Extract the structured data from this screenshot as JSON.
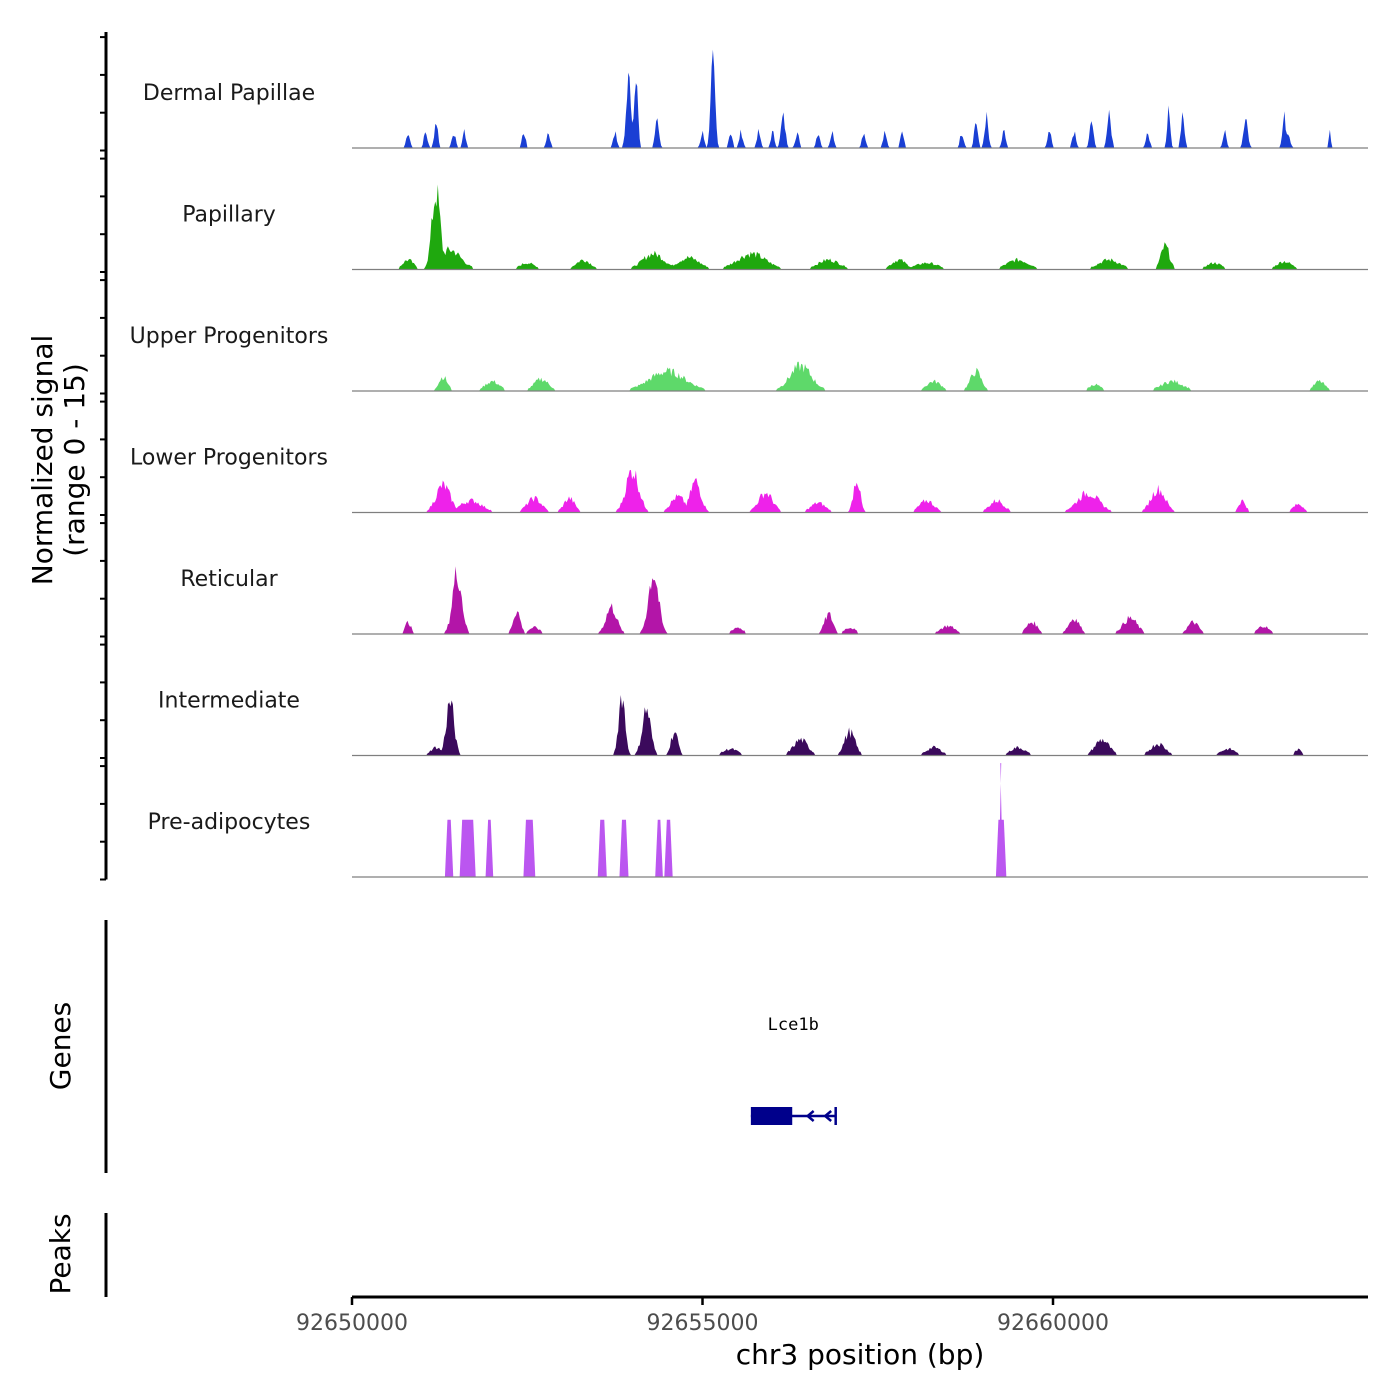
{
  "chart_data": {
    "type": "area",
    "title": "",
    "ylabel": [
      "Normalized signal",
      "(range 0 - 15)"
    ],
    "xlabel": "chr3 position (bp)",
    "xlim": [
      92650000,
      92664600
    ],
    "ylim": [
      0,
      15
    ],
    "x_ticks": [
      92650000,
      92655000,
      92660000
    ],
    "x_tick_labels": [
      "92650000",
      "92655000",
      "92660000"
    ],
    "panel_labels": {
      "genes": "Genes",
      "peaks": "Peaks"
    },
    "series": [
      {
        "name": "Dermal Papillae",
        "color": "#1a3fd4",
        "peaks": [
          [
            92650800,
            2,
            0.5
          ],
          [
            92651050,
            2,
            0.5
          ],
          [
            92651200,
            3.5,
            0.5
          ],
          [
            92651450,
            2,
            0.5
          ],
          [
            92651600,
            2,
            0.5
          ],
          [
            92652450,
            2,
            0.5
          ],
          [
            92652800,
            2,
            0.5
          ],
          [
            92653750,
            2,
            0.5
          ],
          [
            92653950,
            9,
            0.7
          ],
          [
            92654050,
            11,
            0.5
          ],
          [
            92654350,
            4,
            0.5
          ],
          [
            92654350,
            2,
            0.6
          ],
          [
            92655000,
            2,
            0.5
          ],
          [
            92655150,
            11,
            0.6
          ],
          [
            92655400,
            2,
            0.5
          ],
          [
            92655550,
            2,
            0.5
          ],
          [
            92655800,
            2,
            0.5
          ],
          [
            92656000,
            2,
            0.5
          ],
          [
            92656150,
            4,
            0.6
          ],
          [
            92656350,
            2,
            0.5
          ],
          [
            92656650,
            2,
            0.5
          ],
          [
            92656850,
            2,
            0.5
          ],
          [
            92657300,
            2,
            0.5
          ],
          [
            92657600,
            2,
            0.5
          ],
          [
            92657850,
            2,
            0.5
          ],
          [
            92658700,
            2,
            0.5
          ],
          [
            92658900,
            3.5,
            0.5
          ],
          [
            92659050,
            4,
            0.5
          ],
          [
            92659300,
            2,
            0.5
          ],
          [
            92659950,
            2,
            0.5
          ],
          [
            92660300,
            2,
            0.5
          ],
          [
            92660550,
            3.5,
            0.5
          ],
          [
            92660800,
            4,
            0.6
          ],
          [
            92661350,
            2,
            0.5
          ],
          [
            92661650,
            6,
            0.4
          ],
          [
            92661850,
            4,
            0.5
          ],
          [
            92662450,
            2,
            0.5
          ],
          [
            92662750,
            4,
            0.6
          ],
          [
            92663300,
            4,
            0.5
          ],
          [
            92663350,
            2,
            0.6
          ],
          [
            92663950,
            2,
            0.3
          ]
        ]
      },
      {
        "name": "Papillary",
        "color": "#1fa80e",
        "peaks": [
          [
            92650800,
            1.2,
            1.5
          ],
          [
            92651200,
            10,
            1.2
          ],
          [
            92651400,
            2.5,
            3
          ],
          [
            92652500,
            0.8,
            2
          ],
          [
            92653300,
            1.2,
            2
          ],
          [
            92654300,
            2,
            3
          ],
          [
            92654800,
            1.5,
            3
          ],
          [
            92655700,
            2,
            4
          ],
          [
            92656800,
            1.2,
            3
          ],
          [
            92657800,
            1.2,
            2
          ],
          [
            92658200,
            0.8,
            3
          ],
          [
            92659500,
            1.2,
            3
          ],
          [
            92660800,
            1.2,
            3
          ],
          [
            92661600,
            3,
            1.2
          ],
          [
            92662300,
            0.8,
            2
          ],
          [
            92663300,
            1,
            2
          ]
        ]
      },
      {
        "name": "Upper Progenitors",
        "color": "#5ed96a",
        "peaks": [
          [
            92651300,
            1.8,
            1.2
          ],
          [
            92652000,
            1.2,
            2
          ],
          [
            92652700,
            1.5,
            2
          ],
          [
            92654500,
            2.5,
            5
          ],
          [
            92656400,
            3.2,
            3
          ],
          [
            92658900,
            2.5,
            1.5
          ],
          [
            92658300,
            1.2,
            2
          ],
          [
            92660600,
            0.8,
            1.5
          ],
          [
            92661700,
            1.2,
            3
          ],
          [
            92663800,
            1.2,
            1.5
          ]
        ]
      },
      {
        "name": "Lower Progenitors",
        "color": "#ee22ea",
        "peaks": [
          [
            92651300,
            3.5,
            2
          ],
          [
            92651700,
            1.5,
            3
          ],
          [
            92652600,
            1.8,
            2
          ],
          [
            92653100,
            1.8,
            1.5
          ],
          [
            92654000,
            5.5,
            1.8
          ],
          [
            92654900,
            4,
            1.5
          ],
          [
            92654650,
            2,
            2
          ],
          [
            92655900,
            2.5,
            2
          ],
          [
            92656650,
            1.2,
            2
          ],
          [
            92657200,
            4.5,
            0.9
          ],
          [
            92658200,
            1.5,
            2
          ],
          [
            92659200,
            1.5,
            2
          ],
          [
            92660500,
            2.5,
            3
          ],
          [
            92661500,
            3,
            2
          ],
          [
            92662700,
            1.5,
            1
          ],
          [
            92663500,
            1,
            1.5
          ]
        ]
      },
      {
        "name": "Reticular",
        "color": "#b315a8",
        "peaks": [
          [
            92650800,
            1.5,
            0.8
          ],
          [
            92651500,
            8,
            1.3
          ],
          [
            92652350,
            3,
            1
          ],
          [
            92652600,
            0.8,
            1.5
          ],
          [
            92653700,
            3.5,
            1.5
          ],
          [
            92654300,
            8,
            1.4
          ],
          [
            92655500,
            0.8,
            1.5
          ],
          [
            92656800,
            2.5,
            1.2
          ],
          [
            92657100,
            0.8,
            1.5
          ],
          [
            92658500,
            1,
            2
          ],
          [
            92659700,
            1.5,
            1.5
          ],
          [
            92660300,
            2,
            1.5
          ],
          [
            92661100,
            2,
            2
          ],
          [
            92662000,
            1.5,
            1.5
          ],
          [
            92663000,
            1,
            1.5
          ]
        ]
      },
      {
        "name": "Intermediate",
        "color": "#3b0a5c",
        "peaks": [
          [
            92651200,
            1,
            1.5
          ],
          [
            92651400,
            7,
            1.1
          ],
          [
            92653850,
            8,
            0.9
          ],
          [
            92654200,
            6,
            1.2
          ],
          [
            92654600,
            3,
            1
          ],
          [
            92655400,
            0.8,
            2
          ],
          [
            92656400,
            2,
            2
          ],
          [
            92657100,
            3,
            1.5
          ],
          [
            92658300,
            1,
            2
          ],
          [
            92659500,
            1,
            2
          ],
          [
            92660700,
            2,
            2
          ],
          [
            92661500,
            1.5,
            2
          ],
          [
            92662500,
            0.8,
            2
          ],
          [
            92663500,
            0.7,
            1
          ]
        ]
      },
      {
        "name": "Pre-adipocytes",
        "color": "#bb56f0",
        "bars": [
          [
            92651340,
            92651430,
            7.5
          ],
          [
            92651550,
            92651750,
            7.5
          ],
          [
            92651920,
            92652000,
            7.5
          ],
          [
            92652460,
            92652600,
            7.5
          ],
          [
            92653520,
            92653620,
            7.5
          ],
          [
            92653830,
            92653930,
            7.5
          ],
          [
            92654340,
            92654420,
            7.5
          ],
          [
            92654470,
            92654560,
            7.5
          ],
          [
            92659200,
            92659320,
            7.5
          ],
          [
            92659240,
            92659270,
            15
          ]
        ]
      }
    ],
    "genes": [
      {
        "name": "Lce1b",
        "start": 92655690,
        "end": 92656900,
        "cds_end": 92656280,
        "strand": "-",
        "arrows": [
          92656500,
          92656750
        ]
      }
    ],
    "peaks": []
  }
}
